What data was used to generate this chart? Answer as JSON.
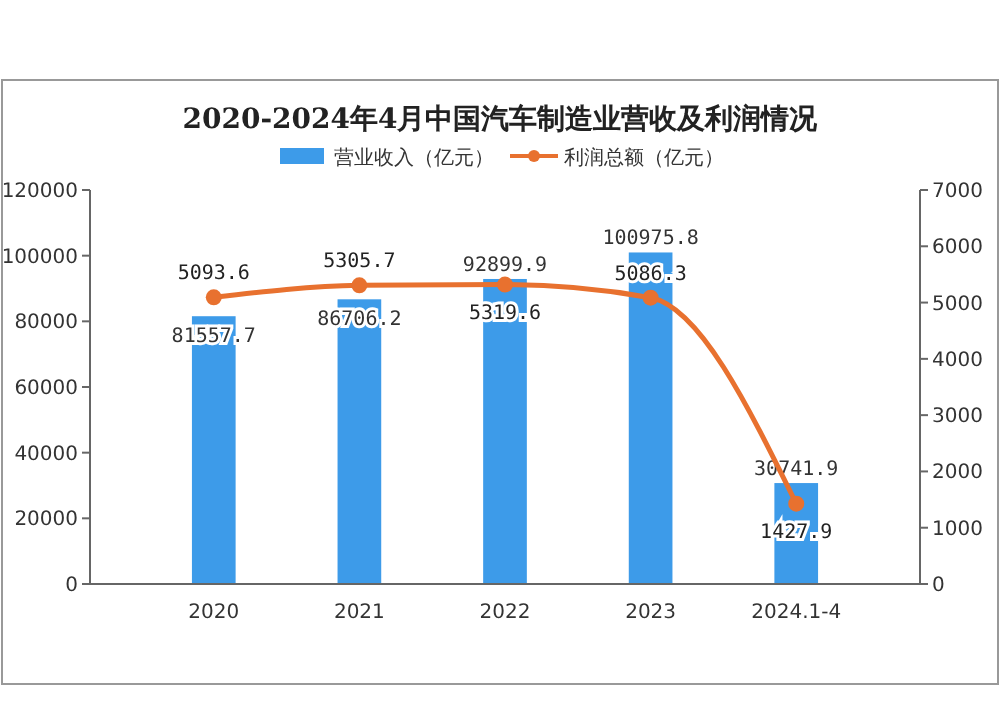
{
  "chart_data": {
    "type": "bar",
    "title": "2020-2024年4月中国汽车制造业营收及利润情况",
    "categories": [
      "2020",
      "2021",
      "2022",
      "2023",
      "2024.1-4"
    ],
    "series": [
      {
        "name": "营业收入（亿元）",
        "color": "#3d9be9",
        "values": [
          81557.7,
          86706.2,
          92899.9,
          100975.8,
          30741.9
        ]
      },
      {
        "name": "利润总额（亿元）",
        "type": "line",
        "axis": "y2",
        "color": "#e8712f",
        "values": [
          5093.6,
          5305.7,
          5319.6,
          5086.3,
          1427.9
        ]
      }
    ],
    "ylim": [
      0,
      120000
    ],
    "yticks": [
      0,
      20000,
      40000,
      60000,
      80000,
      100000,
      120000
    ],
    "y2lim": [
      0,
      7000
    ],
    "y2ticks": [
      0,
      1000,
      2000,
      3000,
      4000,
      5000,
      6000,
      7000
    ],
    "data_labels": true,
    "legend": "top",
    "grid": false,
    "marker": "circle"
  }
}
